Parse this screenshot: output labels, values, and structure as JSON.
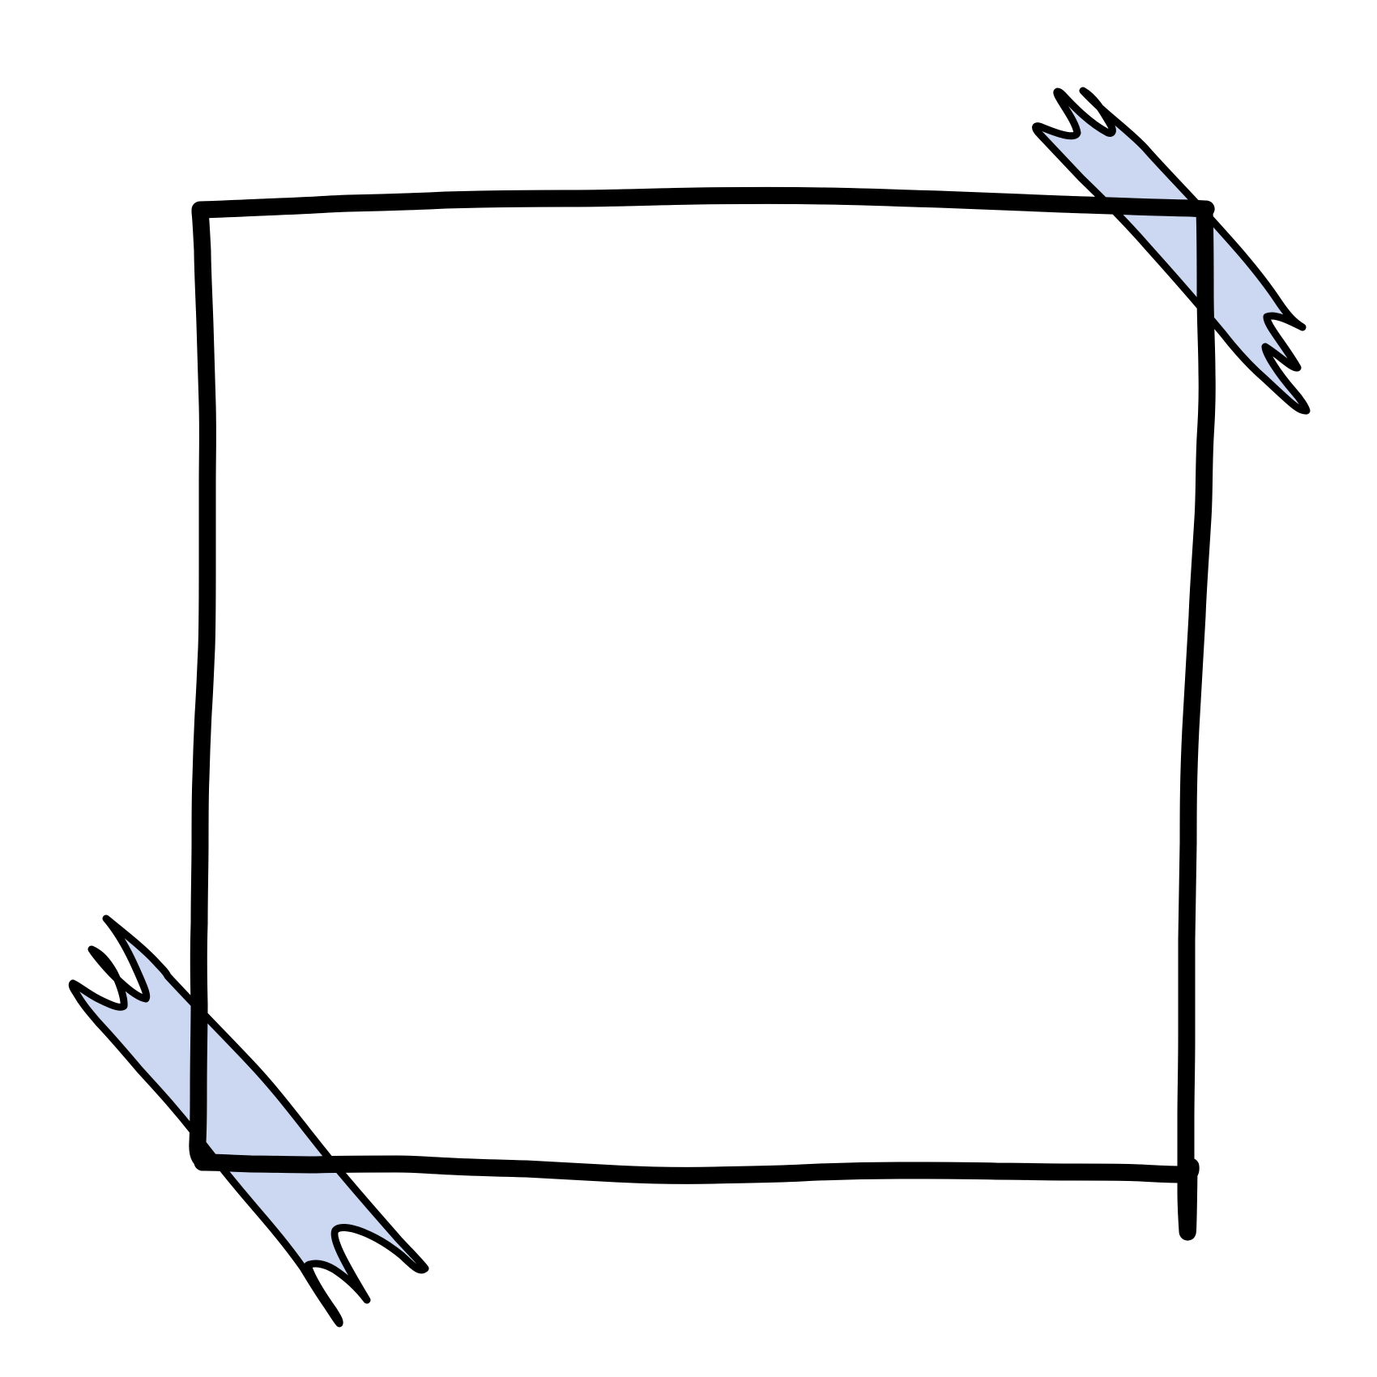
{
  "colors": {
    "background": "#ffffff",
    "frame_stroke": "#000000",
    "tape_fill": "#ccd8f2",
    "tape_stroke": "#000000"
  },
  "elements": {
    "frame": "hand-drawn-square-frame",
    "tape_top_right": "washi-tape-strip",
    "tape_bottom_left": "washi-tape-strip"
  }
}
